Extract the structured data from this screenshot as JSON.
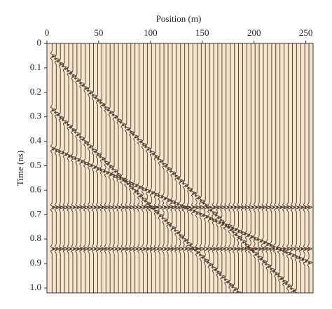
{
  "chart_data": {
    "type": "wiggle",
    "title": "Position (m)",
    "y_label": "Time (ns)",
    "xlim": [
      0,
      257
    ],
    "ylim": [
      0,
      1.02
    ],
    "xticks": [
      0,
      50,
      100,
      150,
      200,
      250
    ],
    "yticks": [
      0,
      0.1,
      0.2,
      0.3,
      0.4,
      0.5,
      0.6,
      0.7,
      0.8,
      0.9,
      {
        "value": 1,
        "label": "1.0"
      }
    ],
    "background": "#f3e6cc",
    "color": "#4a3226",
    "traces": [
      5,
      9,
      13,
      17,
      21,
      25,
      29,
      33,
      37,
      41,
      45,
      49,
      53,
      57,
      61,
      65,
      69,
      73,
      77,
      81,
      85,
      89,
      93,
      97,
      101,
      105,
      109,
      113,
      117,
      121,
      125,
      129,
      133,
      137,
      141,
      145,
      149,
      153,
      157,
      161,
      165,
      169,
      173,
      177,
      181,
      185,
      189,
      193,
      197,
      201,
      205,
      209,
      213,
      217,
      221,
      225,
      229,
      233,
      237,
      241,
      245,
      249,
      253
    ],
    "series": [
      {
        "x": [
          5,
          240
        ],
        "values": [
          0.05,
          1.02
        ]
      },
      {
        "x": [
          5,
          185
        ],
        "values": [
          0.27,
          1.02
        ]
      },
      {
        "x": [
          5,
          255
        ],
        "values": [
          0.43,
          0.9
        ]
      },
      {
        "x": [
          5,
          255
        ],
        "values": [
          0.67,
          0.67
        ]
      },
      {
        "x": [
          5,
          255
        ],
        "values": [
          0.84,
          0.84
        ]
      }
    ]
  }
}
